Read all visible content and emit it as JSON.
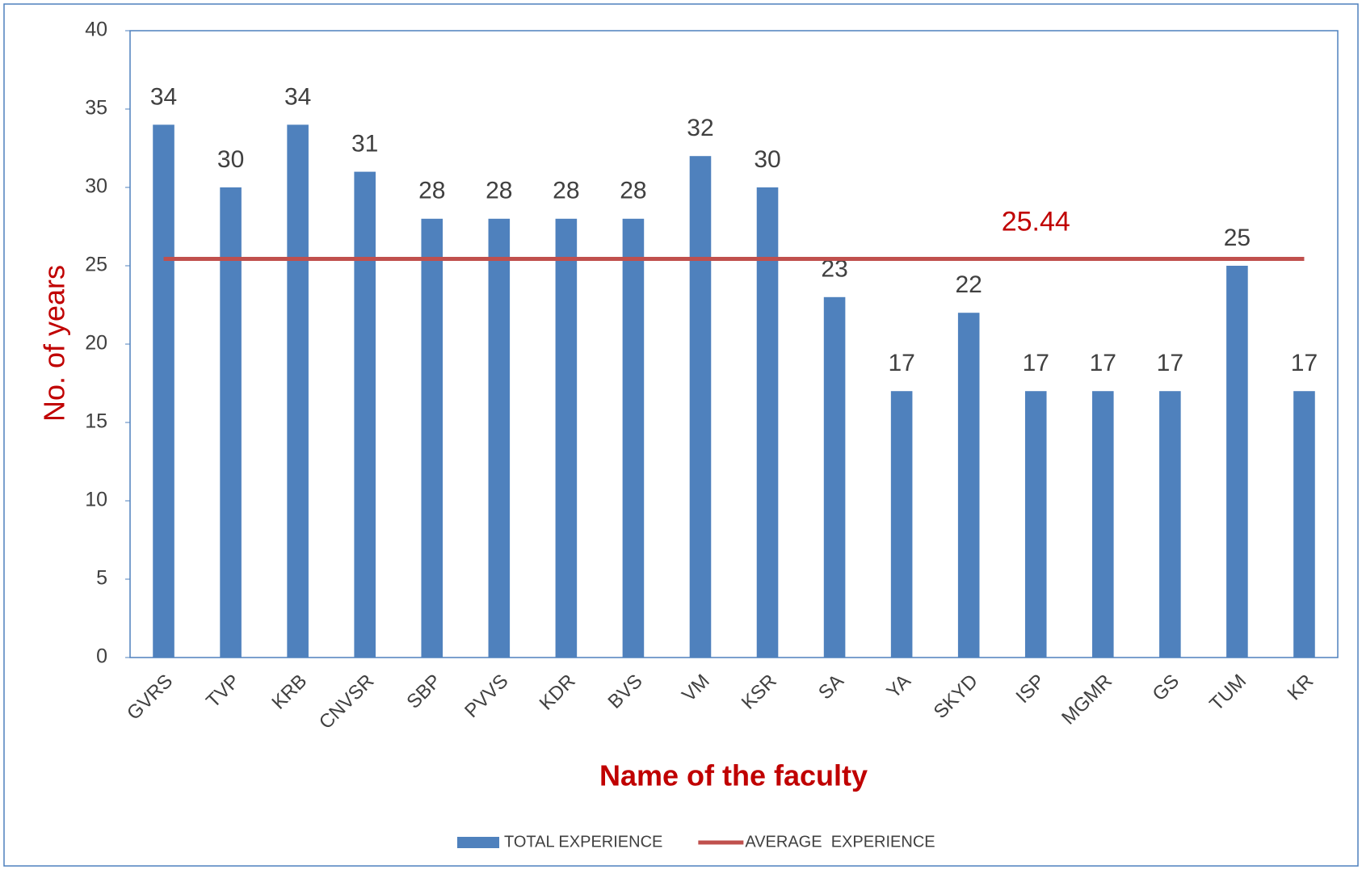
{
  "chart_data": {
    "type": "bar",
    "x_label": "Name of the faculty",
    "y_label": "No. of  years",
    "categories": [
      "GVRS",
      "TVP",
      "KRB",
      "CNVSR",
      "SBP",
      "PVVS",
      "KDR",
      "BVS",
      "VM",
      "KSR",
      "SA",
      "YA",
      "SKYD",
      "ISP",
      "MGMR",
      "GS",
      "TUM",
      "KR"
    ],
    "series": [
      {
        "name": "TOTAL EXPERIENCE",
        "type": "bar",
        "color": "#4f81bd",
        "values": [
          34,
          30,
          34,
          31,
          28,
          28,
          28,
          28,
          32,
          30,
          23,
          17,
          22,
          17,
          17,
          17,
          25,
          17
        ]
      },
      {
        "name": "AVERAGE  EXPERIENCE",
        "type": "line",
        "color": "#c0504d",
        "values": [
          25.44,
          25.44,
          25.44,
          25.44,
          25.44,
          25.44,
          25.44,
          25.44,
          25.44,
          25.44,
          25.44,
          25.44,
          25.44,
          25.44,
          25.44,
          25.44,
          25.44,
          25.44
        ]
      }
    ],
    "ylim": [
      0,
      40
    ],
    "yticks": [
      0,
      5,
      10,
      15,
      20,
      25,
      30,
      35,
      40
    ],
    "grid": false,
    "legend": "bottom"
  }
}
